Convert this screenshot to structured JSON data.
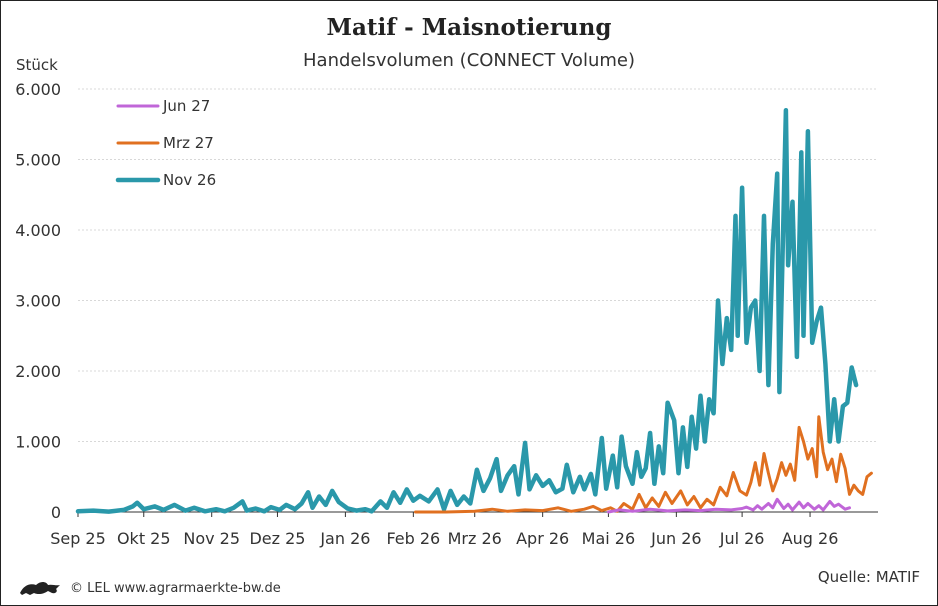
{
  "footer": {
    "copyright": "© LEL www.agrarmaerkte-bw.de",
    "logo_icon": "lion-logo-icon"
  },
  "source": "Quelle: MATIF",
  "chart_data": {
    "type": "line",
    "title": "Matif - Maisnotierung",
    "subtitle": "Handelsvolumen (CONNECT Volume)",
    "ylabel": "Stück",
    "ylim": [
      0,
      6000
    ],
    "yticks": [
      0,
      1000,
      2000,
      3000,
      4000,
      5000,
      6000
    ],
    "ytick_labels": [
      "0",
      "1.000",
      "2.000",
      "3.000",
      "4.000",
      "5.000",
      "6.000"
    ],
    "xlim": [
      "2025-09-01",
      "2026-09-01"
    ],
    "xticks": [
      "2025-09-01",
      "2025-10-01",
      "2025-11-01",
      "2025-12-01",
      "2026-01-01",
      "2026-02-01",
      "2026-03-01",
      "2026-04-01",
      "2026-05-01",
      "2026-06-01",
      "2026-07-01",
      "2026-08-01"
    ],
    "xtick_labels": [
      "Sep 25",
      "Okt 25",
      "Nov 25",
      "Dez 25",
      "Jan 26",
      "Feb 26",
      "Mrz 26",
      "Apr 26",
      "Mai 26",
      "Jun 26",
      "Jul 26",
      "Aug 26"
    ],
    "grid": "horizontal",
    "legend": "top-left",
    "series": [
      {
        "name": "Jun 27",
        "color": "#c066d8",
        "points": [
          [
            "2026-05-01",
            0
          ],
          [
            "2026-05-06",
            30
          ],
          [
            "2026-05-12",
            10
          ],
          [
            "2026-05-20",
            40
          ],
          [
            "2026-05-28",
            15
          ],
          [
            "2026-06-05",
            30
          ],
          [
            "2026-06-12",
            20
          ],
          [
            "2026-06-19",
            40
          ],
          [
            "2026-06-26",
            30
          ],
          [
            "2026-07-01",
            50
          ],
          [
            "2026-07-03",
            70
          ],
          [
            "2026-07-06",
            30
          ],
          [
            "2026-07-08",
            90
          ],
          [
            "2026-07-10",
            40
          ],
          [
            "2026-07-13",
            120
          ],
          [
            "2026-07-15",
            60
          ],
          [
            "2026-07-17",
            180
          ],
          [
            "2026-07-20",
            50
          ],
          [
            "2026-07-22",
            110
          ],
          [
            "2026-07-24",
            30
          ],
          [
            "2026-07-27",
            140
          ],
          [
            "2026-07-29",
            60
          ],
          [
            "2026-07-31",
            120
          ],
          [
            "2026-08-03",
            40
          ],
          [
            "2026-08-05",
            90
          ],
          [
            "2026-08-07",
            30
          ],
          [
            "2026-08-10",
            150
          ],
          [
            "2026-08-12",
            80
          ],
          [
            "2026-08-14",
            110
          ],
          [
            "2026-08-17",
            40
          ],
          [
            "2026-08-19",
            60
          ]
        ]
      },
      {
        "name": "Mrz 27",
        "color": "#e07020",
        "points": [
          [
            "2026-02-02",
            0
          ],
          [
            "2026-02-16",
            0
          ],
          [
            "2026-03-01",
            10
          ],
          [
            "2026-03-09",
            40
          ],
          [
            "2026-03-16",
            10
          ],
          [
            "2026-03-24",
            30
          ],
          [
            "2026-04-01",
            20
          ],
          [
            "2026-04-08",
            60
          ],
          [
            "2026-04-14",
            10
          ],
          [
            "2026-04-20",
            40
          ],
          [
            "2026-04-24",
            80
          ],
          [
            "2026-04-28",
            20
          ],
          [
            "2026-05-02",
            60
          ],
          [
            "2026-05-05",
            10
          ],
          [
            "2026-05-08",
            120
          ],
          [
            "2026-05-12",
            40
          ],
          [
            "2026-05-15",
            250
          ],
          [
            "2026-05-18",
            60
          ],
          [
            "2026-05-21",
            200
          ],
          [
            "2026-05-24",
            80
          ],
          [
            "2026-05-27",
            280
          ],
          [
            "2026-05-30",
            120
          ],
          [
            "2026-06-03",
            300
          ],
          [
            "2026-06-06",
            100
          ],
          [
            "2026-06-09",
            220
          ],
          [
            "2026-06-12",
            60
          ],
          [
            "2026-06-15",
            180
          ],
          [
            "2026-06-18",
            100
          ],
          [
            "2026-06-21",
            350
          ],
          [
            "2026-06-24",
            230
          ],
          [
            "2026-06-27",
            560
          ],
          [
            "2026-06-30",
            300
          ],
          [
            "2026-07-03",
            240
          ],
          [
            "2026-07-05",
            420
          ],
          [
            "2026-07-07",
            700
          ],
          [
            "2026-07-09",
            380
          ],
          [
            "2026-07-11",
            830
          ],
          [
            "2026-07-13",
            550
          ],
          [
            "2026-07-15",
            300
          ],
          [
            "2026-07-17",
            470
          ],
          [
            "2026-07-19",
            700
          ],
          [
            "2026-07-21",
            520
          ],
          [
            "2026-07-23",
            680
          ],
          [
            "2026-07-25",
            450
          ],
          [
            "2026-07-27",
            1200
          ],
          [
            "2026-07-29",
            1000
          ],
          [
            "2026-07-31",
            750
          ],
          [
            "2026-08-02",
            900
          ],
          [
            "2026-08-04",
            500
          ],
          [
            "2026-08-05",
            1350
          ],
          [
            "2026-08-07",
            850
          ],
          [
            "2026-08-09",
            600
          ],
          [
            "2026-08-11",
            750
          ],
          [
            "2026-08-13",
            430
          ],
          [
            "2026-08-15",
            820
          ],
          [
            "2026-08-17",
            620
          ],
          [
            "2026-08-19",
            250
          ],
          [
            "2026-08-21",
            380
          ],
          [
            "2026-08-23",
            300
          ],
          [
            "2026-08-25",
            250
          ],
          [
            "2026-08-27",
            500
          ],
          [
            "2026-08-29",
            550
          ]
        ]
      },
      {
        "name": "Nov 26",
        "color": "#2a98aa",
        "points": [
          [
            "2025-09-01",
            10
          ],
          [
            "2025-09-08",
            20
          ],
          [
            "2025-09-15",
            5
          ],
          [
            "2025-09-22",
            30
          ],
          [
            "2025-09-26",
            80
          ],
          [
            "2025-09-28",
            130
          ],
          [
            "2025-10-01",
            40
          ],
          [
            "2025-10-06",
            80
          ],
          [
            "2025-10-10",
            30
          ],
          [
            "2025-10-15",
            100
          ],
          [
            "2025-10-20",
            20
          ],
          [
            "2025-10-24",
            60
          ],
          [
            "2025-10-29",
            10
          ],
          [
            "2025-11-03",
            40
          ],
          [
            "2025-11-07",
            10
          ],
          [
            "2025-11-11",
            60
          ],
          [
            "2025-11-15",
            150
          ],
          [
            "2025-11-17",
            20
          ],
          [
            "2025-11-21",
            50
          ],
          [
            "2025-11-25",
            10
          ],
          [
            "2025-11-28",
            70
          ],
          [
            "2025-12-02",
            30
          ],
          [
            "2025-12-05",
            100
          ],
          [
            "2025-12-09",
            40
          ],
          [
            "2025-12-12",
            120
          ],
          [
            "2025-12-15",
            280
          ],
          [
            "2025-12-17",
            60
          ],
          [
            "2025-12-20",
            220
          ],
          [
            "2025-12-23",
            100
          ],
          [
            "2025-12-26",
            300
          ],
          [
            "2025-12-29",
            140
          ],
          [
            "2026-01-02",
            50
          ],
          [
            "2026-01-06",
            20
          ],
          [
            "2026-01-10",
            40
          ],
          [
            "2026-01-13",
            10
          ],
          [
            "2026-01-17",
            150
          ],
          [
            "2026-01-20",
            60
          ],
          [
            "2026-01-23",
            280
          ],
          [
            "2026-01-26",
            130
          ],
          [
            "2026-01-29",
            320
          ],
          [
            "2026-02-01",
            160
          ],
          [
            "2026-02-04",
            230
          ],
          [
            "2026-02-08",
            150
          ],
          [
            "2026-02-12",
            320
          ],
          [
            "2026-02-15",
            40
          ],
          [
            "2026-02-18",
            300
          ],
          [
            "2026-02-21",
            100
          ],
          [
            "2026-02-24",
            220
          ],
          [
            "2026-02-27",
            120
          ],
          [
            "2026-03-02",
            600
          ],
          [
            "2026-03-05",
            300
          ],
          [
            "2026-03-08",
            480
          ],
          [
            "2026-03-11",
            750
          ],
          [
            "2026-03-13",
            300
          ],
          [
            "2026-03-16",
            520
          ],
          [
            "2026-03-19",
            650
          ],
          [
            "2026-03-21",
            250
          ],
          [
            "2026-03-24",
            980
          ],
          [
            "2026-03-26",
            320
          ],
          [
            "2026-03-29",
            520
          ],
          [
            "2026-04-01",
            370
          ],
          [
            "2026-04-04",
            450
          ],
          [
            "2026-04-07",
            280
          ],
          [
            "2026-04-10",
            330
          ],
          [
            "2026-04-12",
            670
          ],
          [
            "2026-04-15",
            280
          ],
          [
            "2026-04-18",
            500
          ],
          [
            "2026-04-20",
            320
          ],
          [
            "2026-04-23",
            540
          ],
          [
            "2026-04-25",
            250
          ],
          [
            "2026-04-28",
            1050
          ],
          [
            "2026-04-30",
            330
          ],
          [
            "2026-05-03",
            800
          ],
          [
            "2026-05-05",
            350
          ],
          [
            "2026-05-07",
            1070
          ],
          [
            "2026-05-09",
            650
          ],
          [
            "2026-05-12",
            400
          ],
          [
            "2026-05-14",
            850
          ],
          [
            "2026-05-16",
            500
          ],
          [
            "2026-05-18",
            620
          ],
          [
            "2026-05-20",
            1120
          ],
          [
            "2026-05-22",
            400
          ],
          [
            "2026-05-24",
            930
          ],
          [
            "2026-05-26",
            550
          ],
          [
            "2026-05-28",
            1550
          ],
          [
            "2026-05-31",
            1300
          ],
          [
            "2026-06-02",
            550
          ],
          [
            "2026-06-04",
            1200
          ],
          [
            "2026-06-06",
            640
          ],
          [
            "2026-06-08",
            1350
          ],
          [
            "2026-06-10",
            900
          ],
          [
            "2026-06-12",
            1650
          ],
          [
            "2026-06-14",
            1000
          ],
          [
            "2026-06-16",
            1600
          ],
          [
            "2026-06-18",
            1400
          ],
          [
            "2026-06-20",
            3000
          ],
          [
            "2026-06-22",
            2100
          ],
          [
            "2026-06-24",
            2750
          ],
          [
            "2026-06-26",
            2300
          ],
          [
            "2026-06-28",
            4200
          ],
          [
            "2026-06-29",
            2500
          ],
          [
            "2026-07-01",
            4600
          ],
          [
            "2026-07-03",
            2400
          ],
          [
            "2026-07-05",
            2900
          ],
          [
            "2026-07-07",
            3000
          ],
          [
            "2026-07-09",
            2000
          ],
          [
            "2026-07-11",
            4200
          ],
          [
            "2026-07-13",
            1800
          ],
          [
            "2026-07-15",
            3800
          ],
          [
            "2026-07-17",
            4800
          ],
          [
            "2026-07-18",
            1700
          ],
          [
            "2026-07-21",
            5700
          ],
          [
            "2026-07-22",
            3500
          ],
          [
            "2026-07-24",
            4400
          ],
          [
            "2026-07-26",
            2200
          ],
          [
            "2026-07-28",
            5100
          ],
          [
            "2026-07-29",
            2500
          ],
          [
            "2026-07-31",
            5400
          ],
          [
            "2026-08-02",
            2400
          ],
          [
            "2026-08-04",
            2700
          ],
          [
            "2026-08-06",
            2900
          ],
          [
            "2026-08-08",
            2100
          ],
          [
            "2026-08-10",
            1000
          ],
          [
            "2026-08-12",
            1600
          ],
          [
            "2026-08-14",
            1000
          ],
          [
            "2026-08-16",
            1500
          ],
          [
            "2026-08-18",
            1550
          ],
          [
            "2026-08-20",
            2050
          ],
          [
            "2026-08-22",
            1800
          ]
        ]
      }
    ]
  }
}
